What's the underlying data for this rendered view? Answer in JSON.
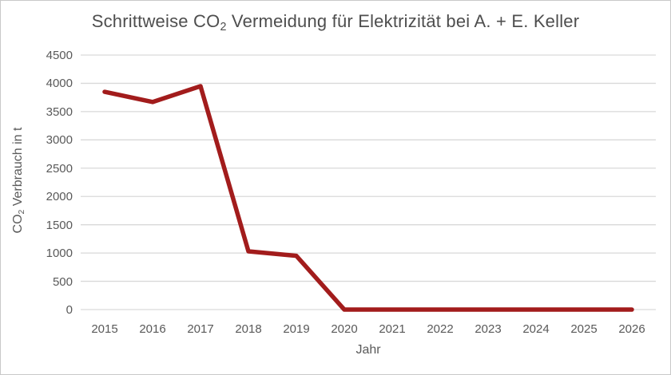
{
  "title_parts": {
    "prefix": "Schrittweise CO",
    "sub": "2",
    "suffix": " Vermeidung für Elektrizität bei A. + E. Keller"
  },
  "ylabel_parts": {
    "prefix": "CO",
    "sub": "2",
    "suffix": " Verbrauch in t"
  },
  "colors": {
    "line": "#a21c1c",
    "gridline": "#d9d9d9",
    "text": "#595959",
    "frame_border": "#c9c9c9",
    "background": "#ffffff"
  },
  "chart_data": {
    "type": "line",
    "title": "Schrittweise CO₂ Vermeidung für Elektrizität bei A. + E. Keller",
    "xlabel": "Jahr",
    "ylabel": "CO₂ Verbrauch in t",
    "categories": [
      "2015",
      "2016",
      "2017",
      "2018",
      "2019",
      "2020",
      "2021",
      "2022",
      "2023",
      "2024",
      "2025",
      "2026"
    ],
    "series": [
      {
        "name": "CO2 Verbrauch",
        "values": [
          3850,
          3670,
          3950,
          1030,
          950,
          0,
          0,
          0,
          0,
          0,
          0,
          0
        ]
      }
    ],
    "ylim": [
      0,
      4500
    ],
    "ytick_step": 500,
    "yticks": [
      0,
      500,
      1000,
      1500,
      2000,
      2500,
      3000,
      3500,
      4000,
      4500
    ],
    "grid": "horizontal",
    "legend": "none"
  }
}
